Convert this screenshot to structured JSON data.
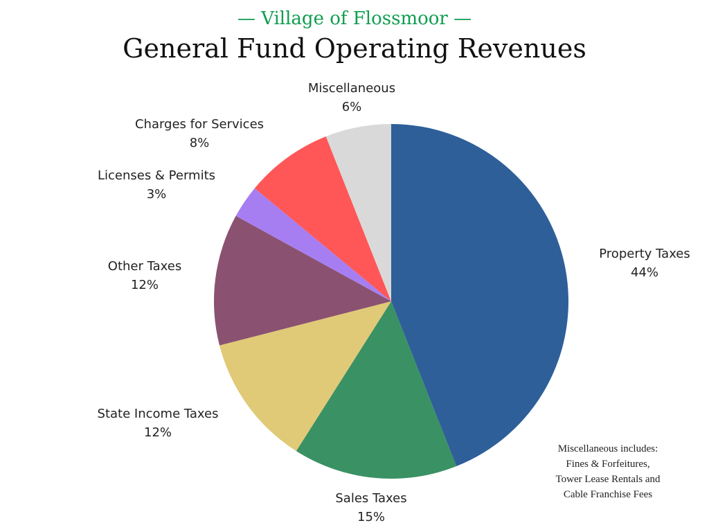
{
  "chart_data": {
    "type": "pie",
    "subtitle": "— Village of Flossmoor —",
    "title": "General Fund Operating Revenues",
    "start": "top, clockwise",
    "slices": [
      {
        "label": "Property Taxes",
        "value": 44,
        "pct_label": "44%",
        "color": "#2e5f99"
      },
      {
        "label": "Sales Taxes",
        "value": 15,
        "pct_label": "15%",
        "color": "#3a9164"
      },
      {
        "label": "State Income Taxes",
        "value": 12,
        "pct_label": "12%",
        "color": "#e0ca78"
      },
      {
        "label": "Other Taxes",
        "value": 12,
        "pct_label": "12%",
        "color": "#8a5270"
      },
      {
        "label": "Licenses & Permits",
        "value": 3,
        "pct_label": "3%",
        "color": "#a77ef2"
      },
      {
        "label": "Charges for Services",
        "value": 8,
        "pct_label": "8%",
        "color": "#ff5757"
      },
      {
        "label": "Miscellaneous",
        "value": 6,
        "pct_label": "6%",
        "color": "#d9d9d9"
      }
    ],
    "annotation": [
      "Miscellaneous includes:",
      "Fines & Forfeitures,",
      "Tower Lease Rentals and",
      "Cable Franchise Fees"
    ]
  }
}
